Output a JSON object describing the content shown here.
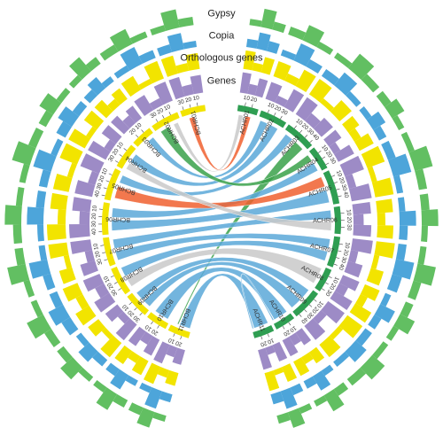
{
  "chart_data": {
    "type": "circos",
    "chromosomes": [
      {
        "name": "ACHR01",
        "length": 30,
        "ticks": [
          10,
          20
        ],
        "color": "#2f9e52"
      },
      {
        "name": "ACHR02",
        "length": 40,
        "ticks": [
          10,
          20,
          30
        ],
        "color": "#2f9e52"
      },
      {
        "name": "ACHR03",
        "length": 45,
        "ticks": [
          10,
          20,
          30,
          40
        ],
        "color": "#2f9e52"
      },
      {
        "name": "ACHR04",
        "length": 35,
        "ticks": [
          10,
          20,
          30
        ],
        "color": "#2f9e52"
      },
      {
        "name": "ACHR05",
        "length": 50,
        "ticks": [
          10,
          20,
          30,
          40
        ],
        "color": "#2f9e52"
      },
      {
        "name": "ACHR06",
        "length": 40,
        "ticks": [
          10,
          20,
          30
        ],
        "color": "#2f9e52"
      },
      {
        "name": "ACHR07",
        "length": 45,
        "ticks": [
          10,
          20,
          30,
          40
        ],
        "color": "#2f9e52"
      },
      {
        "name": "ACHR08",
        "length": 35,
        "ticks": [
          10,
          20,
          30
        ],
        "color": "#2f9e52"
      },
      {
        "name": "ACHR09",
        "length": 45,
        "ticks": [
          10,
          20,
          30,
          40
        ],
        "color": "#2f9e52"
      },
      {
        "name": "ACHR10",
        "length": 30,
        "ticks": [
          10,
          20
        ],
        "color": "#2f9e52"
      },
      {
        "name": "ACHR11",
        "length": 30,
        "ticks": [
          10,
          20
        ],
        "color": "#2f9e52"
      },
      {
        "name": "BCHR01",
        "length": 35,
        "ticks": [
          10,
          20,
          30
        ],
        "color": "#f2e400"
      },
      {
        "name": "BCHR02",
        "length": 40,
        "ticks": [
          10,
          20,
          30
        ],
        "color": "#f2e400"
      },
      {
        "name": "BCHR03",
        "length": 30,
        "ticks": [
          10,
          20
        ],
        "color": "#f2e400"
      },
      {
        "name": "BCHR04",
        "length": 35,
        "ticks": [
          10,
          20,
          30
        ],
        "color": "#f2e400"
      },
      {
        "name": "BCHR05",
        "length": 45,
        "ticks": [
          10,
          20,
          30,
          40
        ],
        "color": "#f2e400"
      },
      {
        "name": "BCHR06",
        "length": 45,
        "ticks": [
          10,
          20,
          30,
          40
        ],
        "color": "#f2e400"
      },
      {
        "name": "BCHR07",
        "length": 40,
        "ticks": [
          10,
          20,
          30
        ],
        "color": "#f2e400"
      },
      {
        "name": "BCHR08",
        "length": 40,
        "ticks": [
          10,
          20,
          30
        ],
        "color": "#f2e400"
      },
      {
        "name": "BCHR09",
        "length": 35,
        "ticks": [
          10,
          20,
          30
        ],
        "color": "#f2e400"
      },
      {
        "name": "BCHR10",
        "length": 30,
        "ticks": [
          10,
          20
        ],
        "color": "#f2e400"
      },
      {
        "name": "BCHR11",
        "length": 30,
        "ticks": [
          10,
          20
        ],
        "color": "#f2e400"
      }
    ],
    "tracks": [
      {
        "name": "Genes",
        "color": "#9d8bc6",
        "values": [
          [
            8,
            4,
            7
          ],
          [
            7,
            3,
            8
          ],
          [
            8,
            4,
            6
          ],
          [
            6,
            3,
            7
          ],
          [
            8,
            3,
            8
          ],
          [
            7,
            4,
            7
          ],
          [
            8,
            3,
            6
          ],
          [
            7,
            4,
            8
          ],
          [
            8,
            3,
            7
          ],
          [
            6,
            4,
            7
          ],
          [
            7,
            3,
            8
          ],
          [
            7,
            4,
            8
          ],
          [
            8,
            3,
            7
          ],
          [
            6,
            4,
            7
          ],
          [
            7,
            3,
            8
          ],
          [
            8,
            3,
            7
          ],
          [
            7,
            4,
            8
          ],
          [
            8,
            3,
            6
          ],
          [
            7,
            4,
            7
          ],
          [
            6,
            3,
            8
          ],
          [
            7,
            4,
            7
          ],
          [
            8,
            4,
            6
          ]
        ]
      },
      {
        "name": "Orthologous genes",
        "color": "#f2e400",
        "values": [
          [
            7,
            3,
            6
          ],
          [
            6,
            3,
            7
          ],
          [
            7,
            2,
            6
          ],
          [
            5,
            3,
            6
          ],
          [
            7,
            2,
            7
          ],
          [
            6,
            3,
            6
          ],
          [
            7,
            2,
            5
          ],
          [
            6,
            3,
            7
          ],
          [
            7,
            2,
            6
          ],
          [
            5,
            3,
            6
          ],
          [
            6,
            2,
            7
          ],
          [
            6,
            3,
            7
          ],
          [
            7,
            2,
            6
          ],
          [
            5,
            3,
            6
          ],
          [
            6,
            2,
            7
          ],
          [
            7,
            2,
            6
          ],
          [
            6,
            3,
            7
          ],
          [
            7,
            2,
            5
          ],
          [
            6,
            3,
            6
          ],
          [
            5,
            2,
            7
          ],
          [
            6,
            3,
            6
          ],
          [
            7,
            3,
            5
          ]
        ]
      },
      {
        "name": "Copia",
        "color": "#4da5da",
        "values": [
          [
            4,
            8,
            5
          ],
          [
            3,
            9,
            4
          ],
          [
            4,
            8,
            3
          ],
          [
            3,
            7,
            4
          ],
          [
            4,
            9,
            3
          ],
          [
            3,
            8,
            4
          ],
          [
            4,
            9,
            5
          ],
          [
            3,
            8,
            4
          ],
          [
            4,
            7,
            3
          ],
          [
            3,
            8,
            4
          ],
          [
            4,
            9,
            5
          ],
          [
            3,
            8,
            4
          ],
          [
            4,
            9,
            3
          ],
          [
            3,
            7,
            4
          ],
          [
            4,
            8,
            5
          ],
          [
            3,
            9,
            4
          ],
          [
            4,
            8,
            3
          ],
          [
            3,
            9,
            4
          ],
          [
            4,
            8,
            5
          ],
          [
            3,
            7,
            4
          ],
          [
            4,
            8,
            3
          ],
          [
            3,
            9,
            4
          ]
        ]
      },
      {
        "name": "Copia",
        "color": "#4da5da",
        "values": []
      },
      {
        "name": "Gypsy",
        "color": "#62bf62",
        "values": [
          [
            3,
            9,
            4
          ],
          [
            4,
            8,
            3
          ],
          [
            3,
            9,
            4
          ],
          [
            4,
            7,
            3
          ],
          [
            3,
            9,
            4
          ],
          [
            4,
            8,
            3
          ],
          [
            3,
            9,
            4
          ],
          [
            4,
            8,
            3
          ],
          [
            3,
            8,
            4
          ],
          [
            4,
            9,
            3
          ],
          [
            3,
            8,
            4
          ],
          [
            4,
            9,
            3
          ],
          [
            3,
            8,
            4
          ],
          [
            4,
            9,
            3
          ],
          [
            3,
            8,
            4
          ],
          [
            4,
            9,
            3
          ],
          [
            3,
            8,
            4
          ],
          [
            4,
            9,
            3
          ],
          [
            3,
            9,
            4
          ],
          [
            4,
            8,
            3
          ],
          [
            3,
            9,
            4
          ],
          [
            4,
            8,
            3
          ]
        ]
      }
    ],
    "links": [
      {
        "from": "ACHR01",
        "from_pos": [
          3,
          10
        ],
        "to": "BCHR02",
        "to_pos": [
          5,
          12
        ],
        "color": "#c9c9c9"
      },
      {
        "from": "ACHR01",
        "from_pos": [
          14,
          22
        ],
        "to": "BCHR01",
        "to_pos": [
          18,
          26
        ],
        "color": "#f0602f"
      },
      {
        "from": "ACHR02",
        "from_pos": [
          4,
          16
        ],
        "to": "BCHR03",
        "to_pos": [
          4,
          14
        ],
        "color": "#5aa8d8"
      },
      {
        "from": "ACHR02",
        "from_pos": [
          20,
          34
        ],
        "to": "BCHR04",
        "to_pos": [
          6,
          20
        ],
        "color": "#5aa8d8"
      },
      {
        "from": "ACHR03",
        "from_pos": [
          5,
          18
        ],
        "to": "BCHR05",
        "to_pos": [
          4,
          16
        ],
        "color": "#5aa8d8"
      },
      {
        "from": "ACHR03",
        "from_pos": [
          24,
          40
        ],
        "to": "BCHR11",
        "to_pos": [
          8,
          10
        ],
        "color": "#3aa14a"
      },
      {
        "from": "ACHR04",
        "from_pos": [
          3,
          14
        ],
        "to": "BCHR02",
        "to_pos": [
          20,
          34
        ],
        "color": "#3aa14a"
      },
      {
        "from": "ACHR04",
        "from_pos": [
          18,
          32
        ],
        "to": "BCHR06",
        "to_pos": [
          6,
          20
        ],
        "color": "#5aa8d8"
      },
      {
        "from": "ACHR05",
        "from_pos": [
          4,
          20
        ],
        "to": "BCHR05",
        "to_pos": [
          22,
          40
        ],
        "color": "#f0602f"
      },
      {
        "from": "ACHR05",
        "from_pos": [
          26,
          46
        ],
        "to": "BCHR06",
        "to_pos": [
          24,
          40
        ],
        "color": "#5aa8d8"
      },
      {
        "from": "ACHR06",
        "from_pos": [
          4,
          18
        ],
        "to": "BCHR07",
        "to_pos": [
          4,
          18
        ],
        "color": "#5aa8d8"
      },
      {
        "from": "ACHR06",
        "from_pos": [
          22,
          36
        ],
        "to": "BCHR04",
        "to_pos": [
          22,
          32
        ],
        "color": "#c9c9c9"
      },
      {
        "from": "ACHR07",
        "from_pos": [
          5,
          20
        ],
        "to": "BCHR07",
        "to_pos": [
          22,
          36
        ],
        "color": "#5aa8d8"
      },
      {
        "from": "ACHR07",
        "from_pos": [
          25,
          40
        ],
        "to": "BCHR08",
        "to_pos": [
          4,
          18
        ],
        "color": "#5aa8d8"
      },
      {
        "from": "ACHR08",
        "from_pos": [
          4,
          30
        ],
        "to": "BCHR08",
        "to_pos": [
          22,
          36
        ],
        "color": "#c9c9c9"
      },
      {
        "from": "ACHR09",
        "from_pos": [
          4,
          20
        ],
        "to": "BCHR09",
        "to_pos": [
          4,
          18
        ],
        "color": "#5aa8d8"
      },
      {
        "from": "ACHR09",
        "from_pos": [
          24,
          42
        ],
        "to": "BCHR09",
        "to_pos": [
          20,
          32
        ],
        "color": "#5aa8d8"
      },
      {
        "from": "ACHR10",
        "from_pos": [
          3,
          26
        ],
        "to": "BCHR10",
        "to_pos": [
          4,
          26
        ],
        "color": "#5aa8d8"
      },
      {
        "from": "ACHR11",
        "from_pos": [
          3,
          26
        ],
        "to": "BCHR11",
        "to_pos": [
          12,
          28
        ],
        "color": "#5aa8d8"
      },
      {
        "from": "ACHR10",
        "from_pos": [
          27,
          29
        ],
        "to": "ACHR11",
        "to_pos": [
          27,
          29
        ],
        "color": "#5aa8d8"
      }
    ]
  }
}
